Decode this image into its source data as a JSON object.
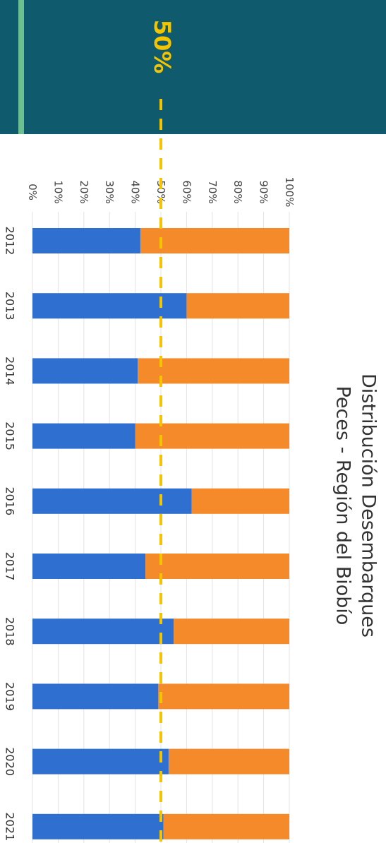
{
  "banner": {
    "label": "50%"
  },
  "chart_data": {
    "type": "bar",
    "stacked": true,
    "percent": true,
    "orientation": "rotated-90-clockwise",
    "title_lines": [
      "Distribución Desembarques",
      "Peces - Región del Biobío"
    ],
    "categories": [
      "2012",
      "2013",
      "2014",
      "2015",
      "2016",
      "2017",
      "2018",
      "2019",
      "2020",
      "2021"
    ],
    "series": [
      {
        "color": "#2f6fcf",
        "values": [
          42,
          60,
          41,
          40,
          62,
          44,
          55,
          49,
          53,
          51
        ]
      },
      {
        "color": "#f58a2a",
        "values": [
          58,
          40,
          59,
          60,
          38,
          56,
          45,
          51,
          47,
          49
        ]
      }
    ],
    "ylim": [
      0,
      100
    ],
    "ytick_labels": [
      "0%",
      "10%",
      "20%",
      "30%",
      "40%",
      "50%",
      "60%",
      "70%",
      "80%",
      "90%",
      "100%"
    ],
    "reference_line": {
      "value": 50,
      "color": "#f5c400",
      "style": "dashed"
    },
    "grid": true
  }
}
